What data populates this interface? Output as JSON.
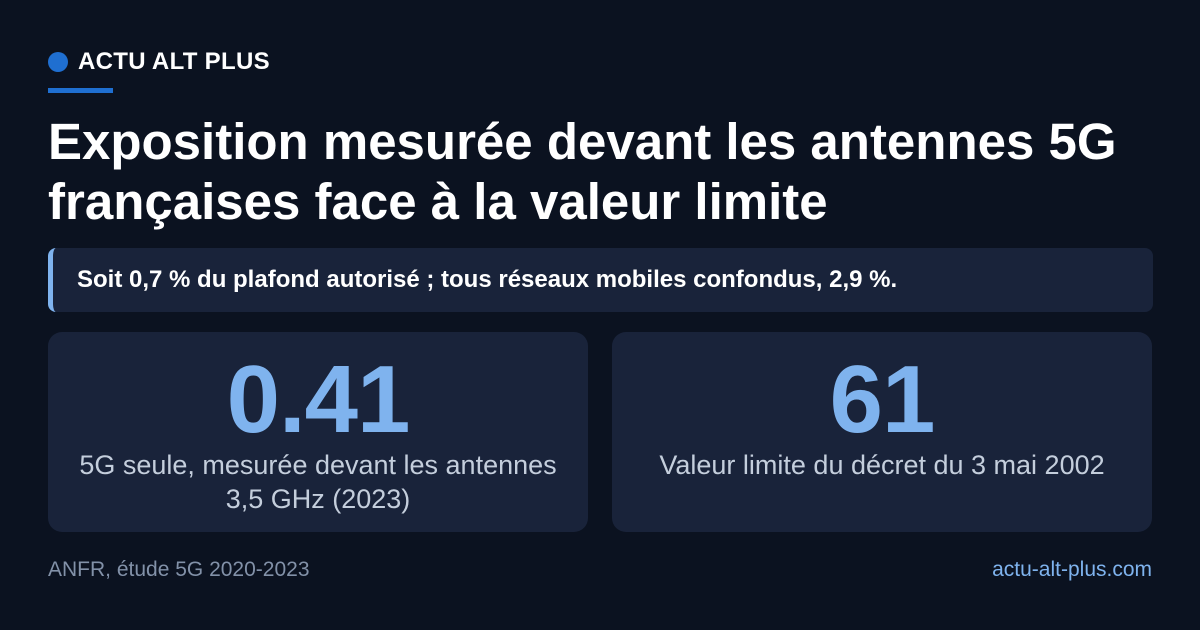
{
  "brand": {
    "name": "ACTU ALT PLUS",
    "accent_color": "#1f6fd1"
  },
  "headline": "Exposition mesurée devant les antennes 5G françaises face à la valeur limite",
  "subheadline": "Soit 0,7 % du plafond autorisé ; tous réseaux mobiles confondus, 2,9 %.",
  "stats": [
    {
      "value": "0.41",
      "label": "5G seule, mesurée devant les antennes 3,5 GHz (2023)"
    },
    {
      "value": "61",
      "label": "Valeur limite du décret du 3 mai 2002"
    }
  ],
  "footer": {
    "source": "ANFR, étude 5G 2020-2023",
    "site": "actu-alt-plus.com"
  },
  "colors": {
    "background": "#0b1220",
    "card": "#19233a",
    "stat_value": "#7fb3ee",
    "muted_text": "#8291a8"
  }
}
